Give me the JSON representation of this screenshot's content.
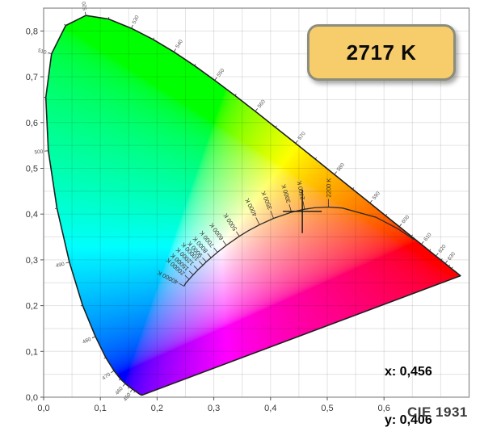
{
  "chart_data": {
    "type": "chromaticity-diagram",
    "title": "CIE 1931",
    "xlim": [
      0,
      0.75
    ],
    "ylim": [
      0,
      0.85
    ],
    "grid_step": 0.05,
    "grid_on": true,
    "x_ticks": [
      {
        "v": 0.0,
        "label": "0,0"
      },
      {
        "v": 0.1,
        "label": "0,1"
      },
      {
        "v": 0.2,
        "label": "0,2"
      },
      {
        "v": 0.3,
        "label": "0,3"
      },
      {
        "v": 0.4,
        "label": "0,4"
      },
      {
        "v": 0.5,
        "label": "0,5"
      },
      {
        "v": 0.6,
        "label": "0,6"
      }
    ],
    "y_ticks": [
      {
        "v": 0.0,
        "label": "0,0"
      },
      {
        "v": 0.1,
        "label": "0,1"
      },
      {
        "v": 0.2,
        "label": "0,2"
      },
      {
        "v": 0.3,
        "label": "0,3"
      },
      {
        "v": 0.4,
        "label": "0,4"
      },
      {
        "v": 0.5,
        "label": "0,5"
      },
      {
        "v": 0.6,
        "label": "0,6"
      },
      {
        "v": 0.7,
        "label": "0,7"
      },
      {
        "v": 0.8,
        "label": "0,8"
      }
    ],
    "measurement": {
      "cct_label": "2717 K",
      "x": 0.456,
      "y": 0.406,
      "x_label": "x: 0,456",
      "y_label": "y: 0,406"
    },
    "colors": {
      "badge_fill": "#f7cd6c",
      "badge_border": "#8d8d7c",
      "grid": "rgba(0,0,0,0.11)",
      "plot_border": "#8a8a8a",
      "locus_stroke": "#1f1f1f",
      "planck_stroke": "#2b2b2b",
      "tick_text": "#3a3a3a",
      "wavelength_text": "#555555",
      "temp_text": "#333333"
    },
    "spectral_locus": [
      [
        380,
        0.1741,
        0.005
      ],
      [
        400,
        0.1733,
        0.0048
      ],
      [
        420,
        0.1714,
        0.0051
      ],
      [
        430,
        0.1689,
        0.0069
      ],
      [
        440,
        0.1644,
        0.0109
      ],
      [
        445,
        0.1611,
        0.0138
      ],
      [
        450,
        0.1566,
        0.0177
      ],
      [
        455,
        0.151,
        0.0227
      ],
      [
        460,
        0.144,
        0.0297
      ],
      [
        465,
        0.1355,
        0.0399
      ],
      [
        470,
        0.1241,
        0.0578
      ],
      [
        475,
        0.1096,
        0.0868
      ],
      [
        480,
        0.0913,
        0.1327
      ],
      [
        485,
        0.0687,
        0.2007
      ],
      [
        490,
        0.0454,
        0.295
      ],
      [
        495,
        0.0235,
        0.4127
      ],
      [
        500,
        0.0082,
        0.5384
      ],
      [
        505,
        0.0039,
        0.6548
      ],
      [
        510,
        0.0139,
        0.7502
      ],
      [
        515,
        0.0389,
        0.812
      ],
      [
        520,
        0.0743,
        0.8338
      ],
      [
        525,
        0.1142,
        0.8262
      ],
      [
        530,
        0.1547,
        0.8059
      ],
      [
        535,
        0.1929,
        0.7816
      ],
      [
        540,
        0.2296,
        0.7543
      ],
      [
        545,
        0.2658,
        0.7243
      ],
      [
        550,
        0.3016,
        0.6923
      ],
      [
        555,
        0.3373,
        0.6589
      ],
      [
        560,
        0.3731,
        0.6245
      ],
      [
        565,
        0.4087,
        0.5896
      ],
      [
        570,
        0.4441,
        0.5547
      ],
      [
        575,
        0.4788,
        0.5202
      ],
      [
        580,
        0.5125,
        0.4866
      ],
      [
        585,
        0.5448,
        0.4544
      ],
      [
        590,
        0.5752,
        0.4242
      ],
      [
        595,
        0.6029,
        0.3965
      ],
      [
        600,
        0.627,
        0.3725
      ],
      [
        605,
        0.6482,
        0.3514
      ],
      [
        610,
        0.6658,
        0.334
      ],
      [
        615,
        0.6801,
        0.3197
      ],
      [
        620,
        0.6915,
        0.3083
      ],
      [
        625,
        0.7006,
        0.2993
      ],
      [
        630,
        0.7079,
        0.292
      ],
      [
        635,
        0.714,
        0.2859
      ],
      [
        640,
        0.719,
        0.2809
      ],
      [
        650,
        0.726,
        0.274
      ],
      [
        700,
        0.7347,
        0.2653
      ]
    ],
    "wavelength_labels": [
      {
        "nm": 450,
        "label": "450"
      },
      {
        "nm": 460,
        "label": "460"
      },
      {
        "nm": 470,
        "label": "470"
      },
      {
        "nm": 480,
        "label": "480"
      },
      {
        "nm": 490,
        "label": "490"
      },
      {
        "nm": 500,
        "label": "500"
      },
      {
        "nm": 510,
        "label": "510"
      },
      {
        "nm": 520,
        "label": "520"
      },
      {
        "nm": 530,
        "label": "530"
      },
      {
        "nm": 540,
        "label": "540"
      },
      {
        "nm": 550,
        "label": "550"
      },
      {
        "nm": 560,
        "label": "560"
      },
      {
        "nm": 570,
        "label": "570"
      },
      {
        "nm": 580,
        "label": "580"
      },
      {
        "nm": 590,
        "label": "590"
      },
      {
        "nm": 600,
        "label": "600"
      },
      {
        "nm": 610,
        "label": "610"
      },
      {
        "nm": 620,
        "label": "620"
      },
      {
        "nm": 630,
        "label": "630"
      }
    ],
    "planckian_locus": [
      [
        1000,
        0.6528,
        0.3444
      ],
      [
        1200,
        0.6249,
        0.3676
      ],
      [
        1500,
        0.5857,
        0.3931
      ],
      [
        2000,
        0.5267,
        0.4133
      ],
      [
        2200,
        0.5021,
        0.4153
      ],
      [
        2500,
        0.477,
        0.4137
      ],
      [
        2700,
        0.4599,
        0.4106
      ],
      [
        3000,
        0.4369,
        0.4041
      ],
      [
        3500,
        0.4053,
        0.3907
      ],
      [
        4000,
        0.3805,
        0.3768
      ],
      [
        4500,
        0.3608,
        0.3636
      ],
      [
        5000,
        0.3451,
        0.3516
      ],
      [
        6000,
        0.3221,
        0.3318
      ],
      [
        7000,
        0.3064,
        0.3166
      ],
      [
        8000,
        0.2952,
        0.3048
      ],
      [
        9000,
        0.2866,
        0.2956
      ],
      [
        10000,
        0.2807,
        0.2884
      ],
      [
        12000,
        0.2719,
        0.2782
      ],
      [
        15000,
        0.2637,
        0.2673
      ],
      [
        20000,
        0.2565,
        0.2577
      ],
      [
        30000,
        0.2504,
        0.249
      ],
      [
        40000,
        0.2476,
        0.2425
      ]
    ],
    "temp_labels": [
      {
        "t": 2200,
        "label": "2200 K"
      },
      {
        "t": 2700,
        "label": "2700 K"
      },
      {
        "t": 3000,
        "label": "3000 K"
      },
      {
        "t": 3500,
        "label": "3500 K"
      },
      {
        "t": 4000,
        "label": "4000 K"
      },
      {
        "t": 5000,
        "label": "5000 K"
      },
      {
        "t": 6000,
        "label": "6000 K"
      },
      {
        "t": 7000,
        "label": "7000 K"
      },
      {
        "t": 8000,
        "label": "8000 K"
      },
      {
        "t": 9000,
        "label": "9000 K"
      },
      {
        "t": 10000,
        "label": "10000 K"
      },
      {
        "t": 12000,
        "label": "12000 K"
      },
      {
        "t": 15000,
        "label": "15000 K"
      },
      {
        "t": 20000,
        "label": "20000 K"
      },
      {
        "t": 40000,
        "label": "40000 K"
      }
    ]
  }
}
